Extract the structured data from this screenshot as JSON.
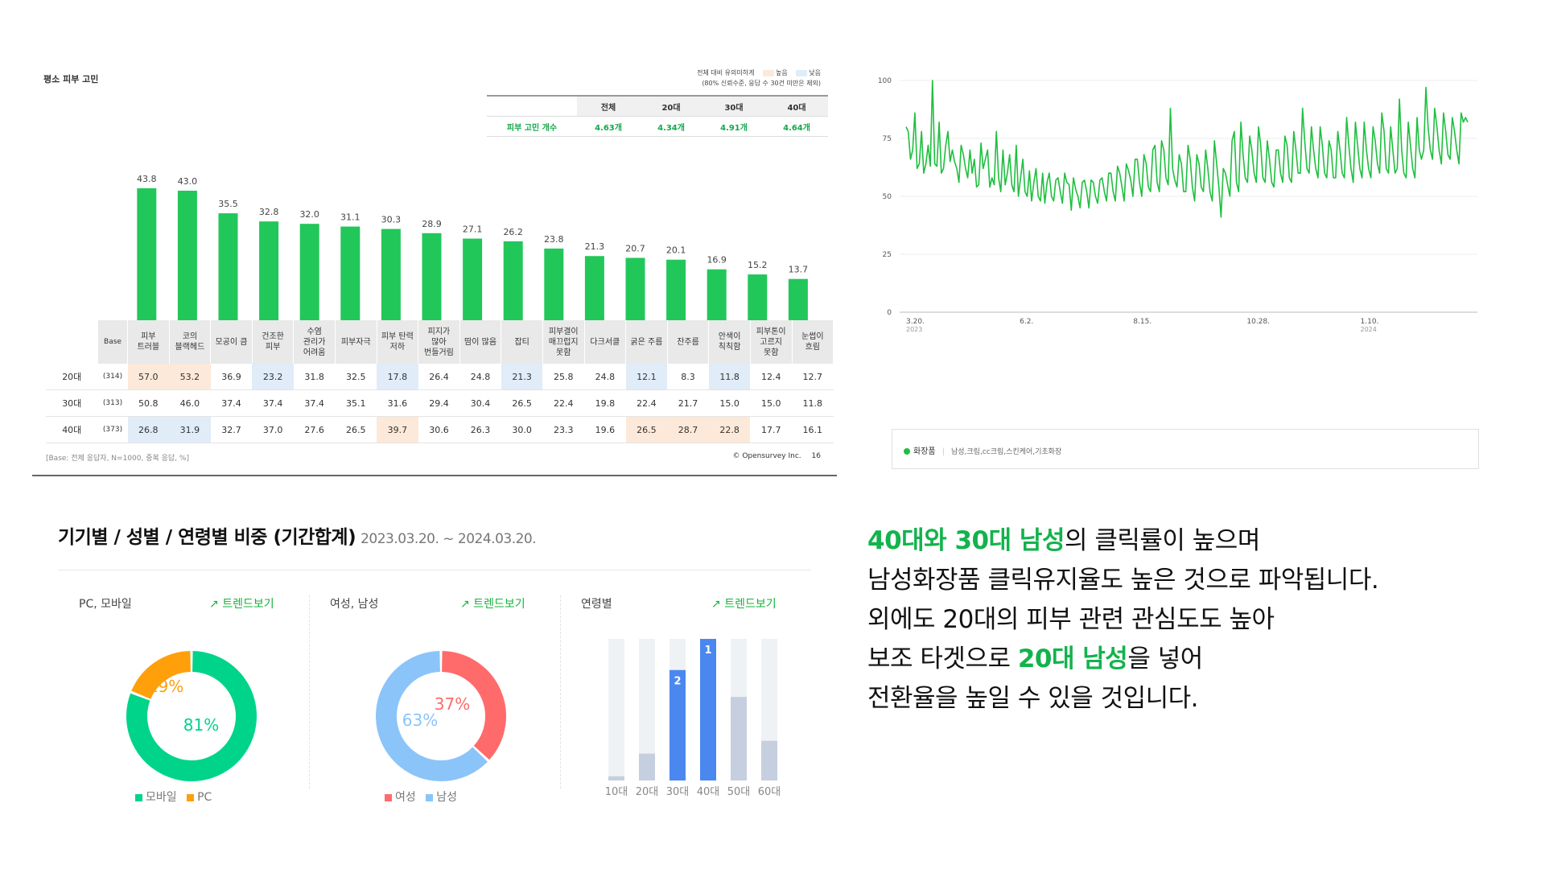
{
  "survey": {
    "title": "평소 피부 고민",
    "legend_note_line1": "전체 대비 유의미하게",
    "legend_high": "높음",
    "legend_low": "낮음",
    "legend_note_line2": "(80% 신뢰수준, 응답 수 30건 미만은 제외)",
    "legend_colors": {
      "high": "#fde9d9",
      "low": "#e0ecf8"
    },
    "summary": {
      "headers": [
        "전체",
        "20대",
        "30대",
        "40대"
      ],
      "row_label": "피부 고민 개수",
      "values": [
        "4.63개",
        "4.34개",
        "4.91개",
        "4.64개"
      ]
    },
    "base_header": "Base",
    "rows": [
      {
        "age": "20대",
        "base": "(314)",
        "values": [
          "57.0",
          "53.2",
          "36.9",
          "23.2",
          "31.8",
          "32.5",
          "17.8",
          "26.4",
          "24.8",
          "21.3",
          "25.8",
          "24.8",
          "12.1",
          "8.3",
          "11.8",
          "12.4",
          "12.7"
        ],
        "marks": [
          "hi",
          "hi",
          "",
          "lo",
          "",
          "",
          "lo",
          "",
          "",
          "lo",
          "",
          "",
          "lo",
          "",
          "lo",
          "",
          ""
        ]
      },
      {
        "age": "30대",
        "base": "(313)",
        "values": [
          "50.8",
          "46.0",
          "37.4",
          "37.4",
          "37.4",
          "35.1",
          "31.6",
          "29.4",
          "30.4",
          "26.5",
          "22.4",
          "19.8",
          "22.4",
          "21.7",
          "15.0",
          "15.0",
          "11.8"
        ],
        "marks": [
          "",
          "",
          "",
          "",
          "",
          "",
          "",
          "",
          "",
          "",
          "",
          "",
          "",
          "",
          "",
          "",
          ""
        ]
      },
      {
        "age": "40대",
        "base": "(373)",
        "values": [
          "26.8",
          "31.9",
          "32.7",
          "37.0",
          "27.6",
          "26.5",
          "39.7",
          "30.6",
          "26.3",
          "30.0",
          "23.3",
          "19.6",
          "26.5",
          "28.7",
          "22.8",
          "17.7",
          "16.1"
        ],
        "marks": [
          "lo",
          "lo",
          "",
          "",
          "",
          "",
          "hi",
          "",
          "",
          "",
          "",
          "",
          "hi",
          "hi",
          "hi",
          "",
          ""
        ]
      }
    ],
    "base_note": "[Base: 전체 응답자, N=1000, 중복 응답, %]",
    "copyright": "© Opensurvey Inc.",
    "page_no": "16"
  },
  "chart_data": [
    {
      "type": "bar",
      "title": "평소 피부 고민",
      "categories": [
        "피부\n트러블",
        "코의\n블랙헤드",
        "모공이 큼",
        "건조한\n피부",
        "수염\n관리가\n어려움",
        "피부자극",
        "피부 탄력\n저하",
        "피지가\n많아\n번들거림",
        "땀이 많음",
        "잡티",
        "피부결이\n매끄럽지\n못함",
        "다크서클",
        "굵은 주름",
        "잔주름",
        "안색이\n칙칙함",
        "피부톤이\n고르지\n못함",
        "눈썹이\n흐림"
      ],
      "values": [
        43.8,
        43.0,
        35.5,
        32.8,
        32.0,
        31.1,
        30.3,
        28.9,
        27.1,
        26.2,
        23.8,
        21.3,
        20.7,
        20.1,
        16.9,
        15.2,
        13.7
      ],
      "ylim": [
        0,
        50
      ],
      "color": "#22c75a"
    },
    {
      "type": "line",
      "series": [
        {
          "name": "화장품",
          "keywords": "남성,크림,cc크림,스킨케어,기초화장",
          "color": "#1fbf3f"
        }
      ],
      "x_ticks": [
        {
          "label": "3.20.",
          "sub": "2023"
        },
        {
          "label": "6.2.",
          "sub": ""
        },
        {
          "label": "8.15.",
          "sub": ""
        },
        {
          "label": "10.28.",
          "sub": ""
        },
        {
          "label": "1.10.",
          "sub": "2024"
        }
      ],
      "y_ticks": [
        0,
        25,
        50,
        75,
        100
      ],
      "ylim": [
        0,
        100
      ],
      "grid": true,
      "x_days": 366,
      "tick_days": [
        0,
        74,
        148,
        222,
        296
      ],
      "values": [
        80,
        78,
        66,
        70,
        86,
        62,
        64,
        78,
        60,
        64,
        72,
        63,
        100,
        64,
        63,
        82,
        60,
        62,
        72,
        78,
        65,
        70,
        65,
        62,
        56,
        72,
        68,
        62,
        58,
        70,
        60,
        66,
        54,
        55,
        73,
        62,
        66,
        70,
        54,
        58,
        55,
        78,
        58,
        52,
        70,
        55,
        60,
        68,
        55,
        52,
        72,
        50,
        58,
        66,
        52,
        50,
        61,
        48,
        56,
        62,
        50,
        48,
        60,
        47,
        56,
        60,
        50,
        48,
        57,
        58,
        52,
        47,
        60,
        56,
        55,
        44,
        58,
        53,
        50,
        45,
        56,
        57,
        52,
        45,
        57,
        56,
        50,
        47,
        57,
        58,
        52,
        48,
        60,
        60,
        52,
        48,
        63,
        60,
        54,
        48,
        64,
        61,
        57,
        50,
        66,
        66,
        56,
        50,
        68,
        64,
        54,
        52,
        70,
        72,
        56,
        52,
        74,
        70,
        58,
        55,
        88,
        62,
        57,
        54,
        68,
        64,
        52,
        52,
        72,
        66,
        54,
        48,
        68,
        64,
        54,
        52,
        70,
        62,
        52,
        48,
        74,
        64,
        54,
        41,
        62,
        60,
        55,
        50,
        74,
        78,
        56,
        52,
        82,
        68,
        58,
        56,
        76,
        70,
        60,
        56,
        80,
        72,
        58,
        56,
        74,
        66,
        56,
        54,
        70,
        70,
        60,
        56,
        76,
        72,
        58,
        56,
        78,
        70,
        60,
        60,
        88,
        74,
        62,
        60,
        80,
        70,
        62,
        58,
        80,
        72,
        60,
        58,
        74,
        70,
        58,
        58,
        78,
        70,
        60,
        58,
        84,
        72,
        62,
        56,
        82,
        72,
        62,
        58,
        82,
        70,
        62,
        58,
        80,
        74,
        64,
        60,
        86,
        78,
        62,
        60,
        80,
        70,
        60,
        62,
        92,
        70,
        60,
        58,
        82,
        72,
        62,
        58,
        84,
        70,
        66,
        70,
        97,
        80,
        70,
        66,
        88,
        80,
        70,
        64,
        86,
        78,
        68,
        66,
        84,
        78,
        70,
        64,
        86,
        82,
        84,
        82
      ]
    },
    {
      "type": "pie",
      "title": "PC, 모바일",
      "labels": [
        "모바일",
        "PC"
      ],
      "values": [
        81,
        19
      ],
      "colors": [
        "#00d48a",
        "#ff9f0a"
      ],
      "legend": "bottom"
    },
    {
      "type": "pie",
      "title": "여성, 남성",
      "labels": [
        "여성",
        "남성"
      ],
      "values": [
        37,
        63
      ],
      "colors": [
        "#ff6b6b",
        "#8bc4f9"
      ],
      "legend": "bottom"
    },
    {
      "type": "bar",
      "title": "연령별",
      "categories": [
        "10대",
        "20대",
        "30대",
        "40대",
        "50대",
        "60대"
      ],
      "values": [
        3,
        19,
        78,
        100,
        59,
        28
      ],
      "ranks": [
        "",
        "",
        "2",
        "1",
        "",
        ""
      ],
      "colors": {
        "default": "#c5cfe0",
        "ranked": "#4a88f0",
        "track": "#eff2f5"
      },
      "ylim": [
        0,
        100
      ]
    }
  ],
  "demographics": {
    "title": "기기별 / 성별 / 연령별 비중 (기간합계)",
    "period": "2023.03.20. ~ 2024.03.20.",
    "trend_label": "트렌드보기",
    "trend_icon": "trend-up-icon",
    "device_label": "PC, 모바일",
    "gender_label": "여성, 남성",
    "age_label": "연령별",
    "device_pc_pct": "19%",
    "device_mobile_pct": "81%",
    "gender_female_pct": "37%",
    "gender_male_pct": "63%",
    "legend_mobile": "모바일",
    "legend_pc": "PC",
    "legend_female": "여성",
    "legend_male": "남성"
  },
  "trend_legend": {
    "name": "화장품",
    "keywords": "남성,크림,cc크림,스킨케어,기초화장"
  },
  "copy": {
    "line1_highlight": "40대와 30대 남성",
    "line1_rest": "의 클릭률이 높으며",
    "line2": "남성화장품 클릭유지율도 높은 것으로 파악됩니다.",
    "line3": "외에도 20대의 피부 관련 관심도도 높아",
    "line4_pre": "보조 타겟으로 ",
    "line4_highlight": "20대 남성",
    "line4_post": "을 넣어",
    "line5": "전환율을 높일 수 있을 것입니다."
  }
}
